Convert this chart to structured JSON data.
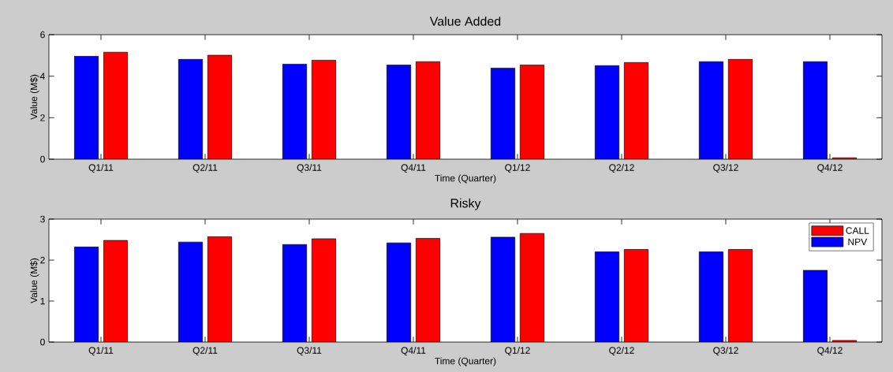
{
  "chart_data": [
    {
      "type": "bar",
      "title": "Value Added",
      "xlabel": "Time (Quarter)",
      "ylabel": "Value (M$)",
      "categories": [
        "Q1/11",
        "Q2/11",
        "Q3/11",
        "Q4/11",
        "Q1/12",
        "Q2/12",
        "Q3/12",
        "Q4/12"
      ],
      "series": [
        {
          "color": "#0000ff",
          "values": [
            4.97,
            4.81,
            4.58,
            4.54,
            4.39,
            4.51,
            4.7,
            4.7
          ]
        },
        {
          "color": "#ff0000",
          "values": [
            5.16,
            5.01,
            4.77,
            4.7,
            4.54,
            4.66,
            4.81,
            0.07
          ]
        }
      ],
      "ylim": [
        0,
        6
      ],
      "yticks": [
        0,
        2,
        4,
        6
      ]
    },
    {
      "type": "bar",
      "title": "Risky",
      "xlabel": "Time (Quarter)",
      "ylabel": "Value (M$)",
      "categories": [
        "Q1/11",
        "Q2/11",
        "Q3/11",
        "Q4/11",
        "Q1/12",
        "Q2/12",
        "Q3/12",
        "Q4/12"
      ],
      "series": [
        {
          "name": "NPV",
          "color": "#0000ff",
          "values": [
            2.32,
            2.44,
            2.38,
            2.42,
            2.56,
            2.2,
            2.2,
            1.75
          ]
        },
        {
          "name": "CALL",
          "color": "#ff0000",
          "values": [
            2.48,
            2.57,
            2.52,
            2.53,
            2.65,
            2.26,
            2.26,
            0.04
          ]
        }
      ],
      "ylim": [
        0,
        3
      ],
      "yticks": [
        0,
        1,
        2,
        3
      ],
      "legend": "top right"
    }
  ]
}
